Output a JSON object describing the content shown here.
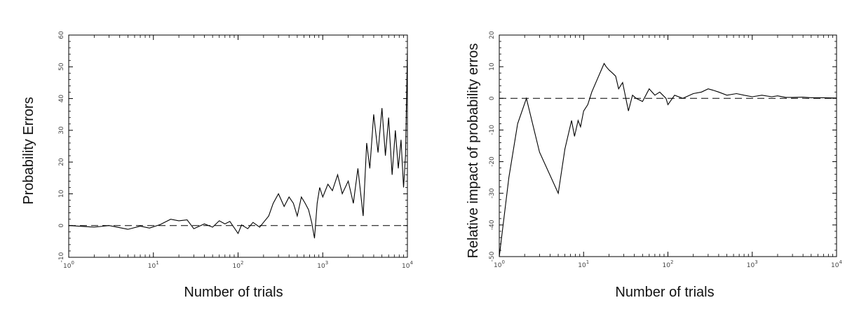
{
  "chart_data": [
    {
      "type": "line",
      "title": "",
      "xlabel": "Number of trials",
      "ylabel": "Probability Errors",
      "xscale": "log",
      "xlim": [
        1,
        10000
      ],
      "ylim": [
        -10,
        60
      ],
      "xticks": [
        {
          "value": 1,
          "base": "10",
          "exp": "0"
        },
        {
          "value": 10,
          "base": "10",
          "exp": "1"
        },
        {
          "value": 100,
          "base": "10",
          "exp": "2"
        },
        {
          "value": 1000,
          "base": "10",
          "exp": "3"
        },
        {
          "value": 10000,
          "base": "10",
          "exp": "4"
        }
      ],
      "yticks": [
        -10,
        0,
        10,
        20,
        30,
        40,
        50,
        60
      ],
      "reference_line": {
        "y": 0,
        "style": "dashed"
      },
      "grid": false,
      "series": [
        {
          "color": "#000000",
          "x": [
            1,
            2,
            3,
            5,
            7,
            9,
            12,
            16,
            20,
            25,
            30,
            40,
            50,
            60,
            70,
            80,
            100,
            110,
            130,
            150,
            180,
            200,
            230,
            260,
            300,
            350,
            400,
            450,
            500,
            560,
            620,
            680,
            740,
            800,
            860,
            920,
            1000,
            1150,
            1300,
            1500,
            1700,
            2000,
            2300,
            2600,
            3000,
            3300,
            3600,
            4000,
            4500,
            5000,
            5500,
            6000,
            6600,
            7200,
            7800,
            8400,
            9000,
            9500,
            10000
          ],
          "values": [
            0,
            -0.5,
            0,
            -1.2,
            -0.2,
            -0.8,
            0.3,
            2,
            1.5,
            1.8,
            -1,
            0.5,
            -0.5,
            1.5,
            0.5,
            1.3,
            -2.5,
            0.2,
            -1,
            1,
            -0.5,
            1,
            3,
            7,
            10,
            6,
            9,
            7,
            3,
            9,
            7,
            5,
            1,
            -4,
            7,
            12,
            9,
            13,
            11,
            16,
            10,
            14,
            7,
            18,
            3,
            26,
            18,
            35,
            23,
            37,
            22,
            34,
            16,
            30,
            18,
            27,
            12,
            22,
            55
          ]
        }
      ]
    },
    {
      "type": "line",
      "title": "",
      "xlabel": "Number of trials",
      "ylabel": "Relative impact of probability erros",
      "xscale": "log",
      "xlim": [
        1,
        10000
      ],
      "ylim": [
        -50,
        20
      ],
      "xticks": [
        {
          "value": 1,
          "base": "10",
          "exp": "0"
        },
        {
          "value": 10,
          "base": "10",
          "exp": "1"
        },
        {
          "value": 100,
          "base": "10",
          "exp": "2"
        },
        {
          "value": 1000,
          "base": "10",
          "exp": "3"
        },
        {
          "value": 10000,
          "base": "10",
          "exp": "4"
        }
      ],
      "yticks": [
        -50,
        -40,
        -30,
        -20,
        -10,
        0,
        10,
        20
      ],
      "reference_line": {
        "y": 0,
        "style": "dashed"
      },
      "grid": false,
      "series": [
        {
          "color": "#000000",
          "x": [
            0.9,
            1.3,
            1.65,
            2.1,
            3,
            5,
            6,
            7.2,
            7.8,
            8.6,
            9.2,
            10,
            11.2,
            12.5,
            14.5,
            17.5,
            18.5,
            20,
            22,
            24,
            26,
            29,
            34,
            38,
            42,
            50,
            60,
            70,
            80,
            95,
            100,
            120,
            150,
            200,
            250,
            300,
            350,
            400,
            500,
            650,
            800,
            1000,
            1300,
            1700,
            2000,
            2500,
            3000,
            4000,
            5000,
            7000,
            10000
          ],
          "values": [
            -50,
            -25,
            -8,
            0,
            -17,
            -30,
            -16,
            -7,
            -12,
            -7,
            -9,
            -4,
            -2,
            2,
            6,
            11,
            10,
            9,
            8,
            7,
            3,
            5,
            -4,
            1,
            0,
            -1,
            3,
            1,
            2,
            0,
            -2,
            1,
            0,
            1.5,
            2,
            3,
            2.5,
            2,
            1,
            1.5,
            1,
            0.5,
            1,
            0.5,
            0.8,
            0.3,
            0.3,
            0.4,
            0.2,
            0.2,
            0.1
          ]
        }
      ]
    }
  ]
}
